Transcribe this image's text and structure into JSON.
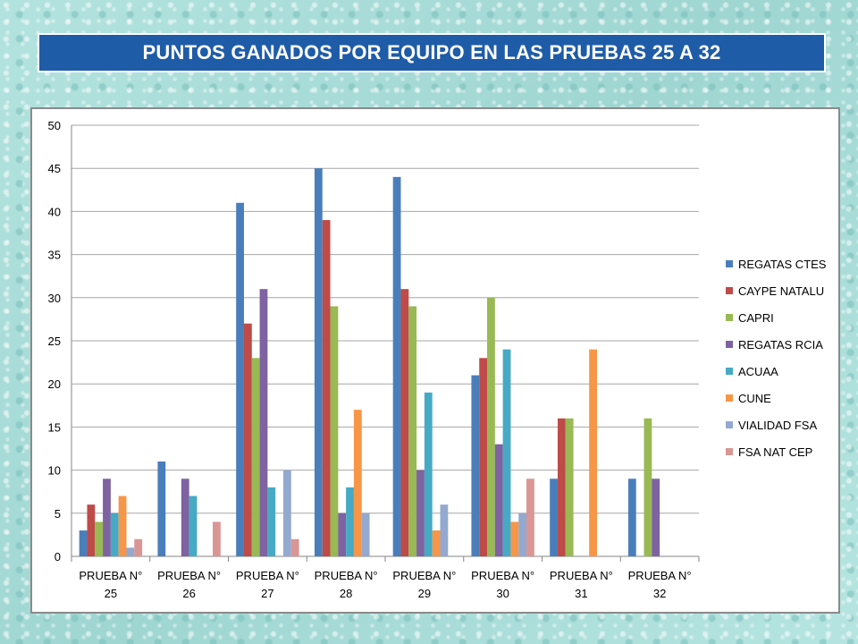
{
  "page": {
    "title": "PUNTOS GANADOS POR EQUIPO EN LAS PRUEBAS 25 A 32"
  },
  "chart_data": {
    "type": "bar",
    "title": "",
    "xlabel": "",
    "ylabel": "",
    "ylim": [
      0,
      50
    ],
    "yticks": [
      0,
      5,
      10,
      15,
      20,
      25,
      30,
      35,
      40,
      45,
      50
    ],
    "grid": true,
    "legend_position": "right",
    "categories": [
      [
        "PRUEBA N°",
        "25"
      ],
      [
        "PRUEBA N°",
        "26"
      ],
      [
        "PRUEBA N°",
        "27"
      ],
      [
        "PRUEBA N°",
        "28"
      ],
      [
        "PRUEBA N°",
        "29"
      ],
      [
        "PRUEBA N°",
        "30"
      ],
      [
        "PRUEBA N°",
        "31"
      ],
      [
        "PRUEBA N°",
        "32"
      ]
    ],
    "series": [
      {
        "name": "REGATAS CTES",
        "color": "#4a7ebb",
        "values": [
          3,
          11,
          41,
          45,
          44,
          21,
          9,
          9
        ]
      },
      {
        "name": "CAYPE NATALU",
        "color": "#be4b48",
        "values": [
          6,
          0,
          27,
          39,
          31,
          23,
          16,
          0
        ]
      },
      {
        "name": "CAPRI",
        "color": "#98b954",
        "values": [
          4,
          0,
          23,
          29,
          29,
          30,
          16,
          16
        ]
      },
      {
        "name": "REGATAS RCIA",
        "color": "#7e62a1",
        "values": [
          9,
          9,
          31,
          5,
          10,
          13,
          0,
          9
        ]
      },
      {
        "name": "ACUAA",
        "color": "#46aac5",
        "values": [
          5,
          7,
          8,
          8,
          19,
          24,
          0,
          0
        ]
      },
      {
        "name": "CUNE",
        "color": "#f79646",
        "values": [
          7,
          0,
          0,
          17,
          3,
          4,
          24,
          0
        ]
      },
      {
        "name": "VIALIDAD FSA",
        "color": "#93a9cf",
        "values": [
          1,
          0,
          10,
          5,
          6,
          5,
          0,
          0
        ]
      },
      {
        "name": "FSA NAT CEP",
        "color": "#d99694",
        "values": [
          2,
          4,
          2,
          0,
          0,
          9,
          0,
          0
        ]
      }
    ]
  }
}
